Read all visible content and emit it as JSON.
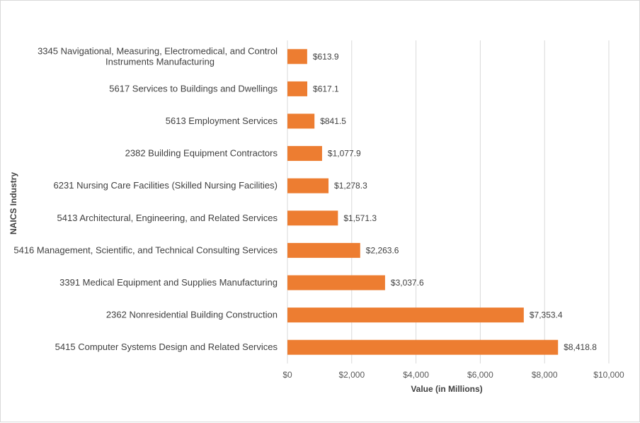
{
  "chart_data": {
    "type": "bar",
    "orientation": "horizontal",
    "xlabel": "Value (in Millions)",
    "ylabel": "NAICS Industry",
    "xlim": [
      0,
      10000
    ],
    "x_ticks": [
      0,
      2000,
      4000,
      6000,
      8000,
      10000
    ],
    "x_tick_labels": [
      "$0",
      "$2,000",
      "$4,000",
      "$6,000",
      "$8,000",
      "$10,000"
    ],
    "grid": "vertical",
    "bar_color": "#ED7D31",
    "categories": [
      [
        "3345 Navigational, Measuring, Electromedical, and Control",
        "Instruments Manufacturing"
      ],
      [
        "5617 Services to Buildings and Dwellings"
      ],
      [
        "5613 Employment Services"
      ],
      [
        "2382 Building Equipment Contractors"
      ],
      [
        "6231 Nursing Care Facilities (Skilled Nursing Facilities)"
      ],
      [
        "5413 Architectural, Engineering, and Related Services"
      ],
      [
        "5416 Management, Scientific, and Technical Consulting Services"
      ],
      [
        "3391 Medical Equipment and Supplies Manufacturing"
      ],
      [
        "2362 Nonresidential Building Construction"
      ],
      [
        "5415 Computer Systems Design and Related Services"
      ]
    ],
    "values": [
      613.9,
      617.1,
      841.5,
      1077.9,
      1278.3,
      1571.3,
      2263.6,
      3037.6,
      7353.4,
      8418.8
    ],
    "value_labels": [
      "$613.9",
      "$617.1",
      "$841.5",
      "$1,077.9",
      "$1,278.3",
      "$1,571.3",
      "$2,263.6",
      "$3,037.6",
      "$7,353.4",
      "$8,418.8"
    ]
  }
}
